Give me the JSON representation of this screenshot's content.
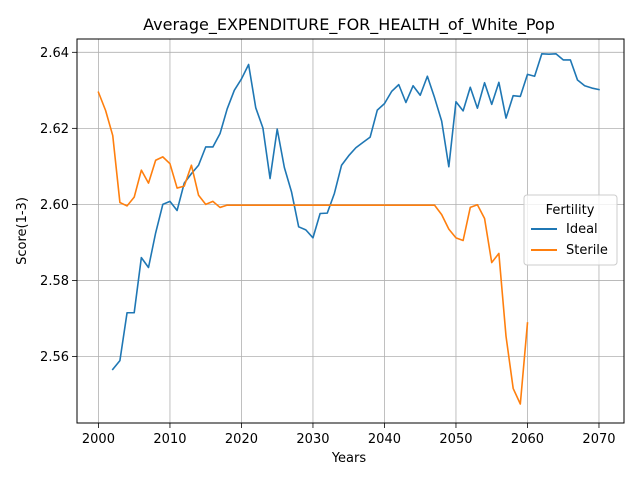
{
  "chart_data": {
    "type": "line",
    "title": "Average_EXPENDITURE_FOR_HEALTH_of_White_Pop",
    "xlabel": "Years",
    "ylabel": "Score(1-3)",
    "xlim": [
      1997,
      2073.5
    ],
    "ylim": [
      2.5425,
      2.6435
    ],
    "xticks": [
      2000,
      2010,
      2020,
      2030,
      2040,
      2050,
      2060,
      2070
    ],
    "yticks": [
      2.56,
      2.58,
      2.6,
      2.62,
      2.64
    ],
    "ytick_labels": [
      "2.56",
      "2.58",
      "2.60",
      "2.62",
      "2.64"
    ],
    "grid": true,
    "legend": {
      "title": "Fertility",
      "placement": "center-right"
    },
    "series": [
      {
        "name": "Ideal",
        "color": "#1f77b4",
        "x": [
          2002,
          2003,
          2004,
          2005,
          2006,
          2007,
          2008,
          2009,
          2010,
          2011,
          2012,
          2013,
          2014,
          2015,
          2016,
          2017,
          2018,
          2019,
          2020,
          2021,
          2022,
          2023,
          2024,
          2025,
          2026,
          2027,
          2028,
          2029,
          2030,
          2031,
          2032,
          2033,
          2034,
          2035,
          2036,
          2037,
          2038,
          2039,
          2040,
          2041,
          2042,
          2043,
          2044,
          2045,
          2046,
          2047,
          2048,
          2049,
          2050,
          2051,
          2052,
          2053,
          2054,
          2055,
          2056,
          2057,
          2058,
          2059,
          2060,
          2061,
          2062,
          2063,
          2064,
          2065,
          2066,
          2067,
          2068,
          2069,
          2070
        ],
        "y": [
          2.5566,
          2.5589,
          2.5715,
          2.5715,
          2.586,
          2.5834,
          2.5925,
          2.6,
          2.6008,
          2.5984,
          2.6056,
          2.6081,
          2.6103,
          2.6151,
          2.6151,
          2.6186,
          2.6251,
          2.63,
          2.633,
          2.6368,
          2.6254,
          2.6201,
          2.6068,
          2.6198,
          2.6097,
          2.6033,
          2.5941,
          2.5933,
          2.5912,
          2.5976,
          2.5977,
          2.6029,
          2.6103,
          2.6128,
          2.6149,
          2.6163,
          2.6177,
          2.6248,
          2.6265,
          2.6297,
          2.6315,
          2.6268,
          2.6312,
          2.6287,
          2.6337,
          2.6281,
          2.6219,
          2.6099,
          2.627,
          2.6246,
          2.6308,
          2.6253,
          2.632,
          2.6263,
          2.6321,
          2.6227,
          2.6286,
          2.6284,
          2.6342,
          2.6337,
          2.6396,
          2.6395,
          2.6396,
          2.638,
          2.638,
          2.6327,
          2.6312,
          2.6306,
          2.6302
        ]
      },
      {
        "name": "Sterile",
        "color": "#ff7f0e",
        "x": [
          2000,
          2001,
          2002,
          2003,
          2004,
          2005,
          2006,
          2007,
          2008,
          2009,
          2010,
          2011,
          2012,
          2013,
          2014,
          2015,
          2016,
          2017,
          2018,
          2019,
          2020,
          2021,
          2022,
          2023,
          2024,
          2025,
          2026,
          2027,
          2028,
          2029,
          2030,
          2031,
          2032,
          2033,
          2034,
          2035,
          2036,
          2037,
          2038,
          2039,
          2040,
          2041,
          2042,
          2043,
          2044,
          2045,
          2046,
          2047,
          2048,
          2049,
          2050,
          2051,
          2052,
          2053,
          2054,
          2055,
          2056,
          2057,
          2058,
          2059,
          2060
        ],
        "y": [
          2.6295,
          2.6247,
          2.6181,
          2.6005,
          2.5996,
          2.6019,
          2.609,
          2.6056,
          2.6116,
          2.6125,
          2.6107,
          2.6043,
          2.6048,
          2.6103,
          2.6024,
          2.6,
          2.6008,
          2.5992,
          2.5998,
          2.5998,
          2.5998,
          2.5998,
          2.5998,
          2.5998,
          2.5998,
          2.5998,
          2.5998,
          2.5998,
          2.5998,
          2.5998,
          2.5998,
          2.5998,
          2.5998,
          2.5998,
          2.5998,
          2.5998,
          2.5998,
          2.5998,
          2.5998,
          2.5998,
          2.5998,
          2.5998,
          2.5998,
          2.5998,
          2.5998,
          2.5998,
          2.5998,
          2.5998,
          2.5973,
          2.5935,
          2.5912,
          2.5905,
          2.5992,
          2.5999,
          2.5963,
          2.5847,
          2.5871,
          2.5653,
          2.5516,
          2.5475,
          2.5688
        ]
      }
    ]
  }
}
